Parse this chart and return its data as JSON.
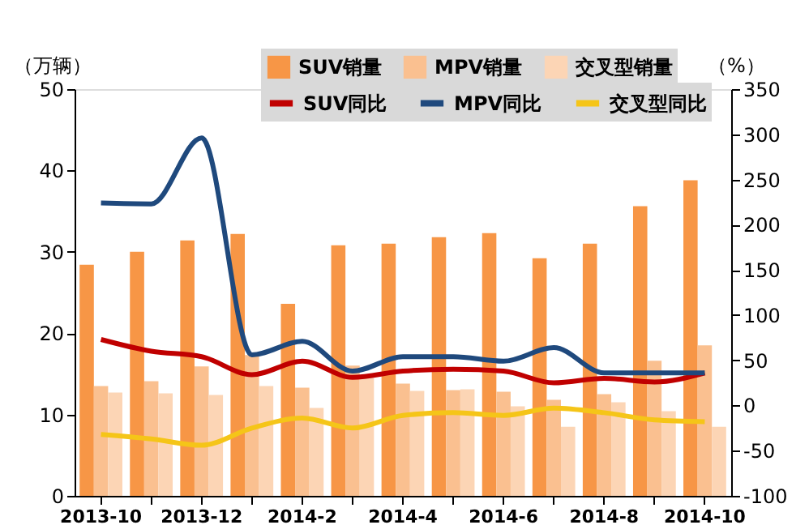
{
  "chart_data": {
    "type": "bar",
    "ylabel": "（万辆）",
    "y2label": "（%）",
    "categories": [
      "2013-10",
      null,
      "2013-12",
      null,
      "2014-2",
      null,
      "2014-4",
      null,
      "2014-6",
      null,
      "2014-8",
      null,
      "2014-10"
    ],
    "ylim": [
      0,
      50
    ],
    "yticks": [
      0,
      10,
      20,
      30,
      40,
      50
    ],
    "y2lim": [
      -100,
      350
    ],
    "y2ticks": [
      -100,
      -50,
      0,
      50,
      100,
      150,
      200,
      250,
      300,
      350
    ],
    "grid": false,
    "legend": "top",
    "series": [
      {
        "name": "SUV销量",
        "color": "#f79646",
        "values": [
          28.4,
          30.0,
          31.4,
          32.2,
          23.6,
          30.8,
          31.0,
          31.8,
          32.3,
          29.2,
          31.0,
          35.6,
          38.8
        ]
      },
      {
        "name": "MPV销量",
        "color": "#fac090",
        "values": [
          13.5,
          14.1,
          15.9,
          17.3,
          13.3,
          16.0,
          13.8,
          13.0,
          12.8,
          11.8,
          12.5,
          16.6,
          18.5
        ]
      },
      {
        "name": "交叉型销量",
        "color": "#fcd5b5",
        "values": [
          12.7,
          12.6,
          12.4,
          13.5,
          10.8,
          14.5,
          12.9,
          13.1,
          11.0,
          8.5,
          11.5,
          10.4,
          8.5
        ]
      },
      {
        "name": "SUV同比",
        "type": "line",
        "axis": "y2",
        "color": "#c00000",
        "values": [
          73,
          60,
          54,
          34,
          49,
          31,
          38,
          40,
          38,
          25,
          30,
          26,
          36
        ]
      },
      {
        "name": "MPV同比",
        "type": "line",
        "axis": "y2",
        "color": "#1f497d",
        "values": [
          224,
          223,
          296,
          56,
          71,
          38,
          54,
          54,
          49,
          64,
          36,
          36,
          36
        ]
      },
      {
        "name": "交叉型同比",
        "type": "line",
        "axis": "y2",
        "color": "#f5c518",
        "values": [
          -32,
          -37,
          -44,
          -25,
          -14,
          -25,
          -11,
          -8,
          -11,
          -3,
          -8,
          -16,
          -18
        ]
      }
    ]
  }
}
